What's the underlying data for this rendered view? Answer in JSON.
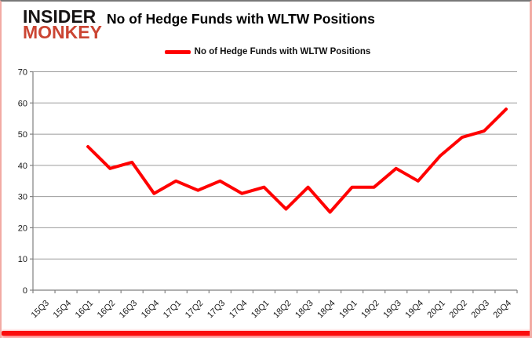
{
  "logo": {
    "line1": "INSIDER",
    "line2": "MONKEY",
    "accent_color": "#cb4533"
  },
  "chart_title": "No of Hedge Funds with WLTW Positions",
  "legend": {
    "label": "No of Hedge Funds with WLTW Positions",
    "color": "#ff0000"
  },
  "chart_data": {
    "type": "line",
    "title": "No of Hedge Funds with WLTW Positions",
    "categories": [
      "15Q3",
      "15Q4",
      "16Q1",
      "16Q2",
      "16Q3",
      "16Q4",
      "17Q1",
      "17Q2",
      "17Q3",
      "17Q4",
      "18Q1",
      "18Q2",
      "18Q3",
      "18Q4",
      "19Q1",
      "19Q2",
      "19Q3",
      "19Q4",
      "20Q1",
      "20Q2",
      "20Q3",
      "20Q4"
    ],
    "series": [
      {
        "name": "No of Hedge Funds with WLTW Positions",
        "color": "#ff0000",
        "values": [
          null,
          null,
          46,
          39,
          41,
          31,
          35,
          32,
          35,
          31,
          33,
          26,
          33,
          25,
          33,
          33,
          39,
          35,
          43,
          49,
          51,
          58
        ]
      }
    ],
    "ylim": [
      0,
      70
    ],
    "ytick_interval": 10,
    "xlabel": "",
    "ylabel": "",
    "grid": true,
    "legend_position": "top-center",
    "grid_color": "#9b9b9b",
    "axis_color": "#808080"
  }
}
